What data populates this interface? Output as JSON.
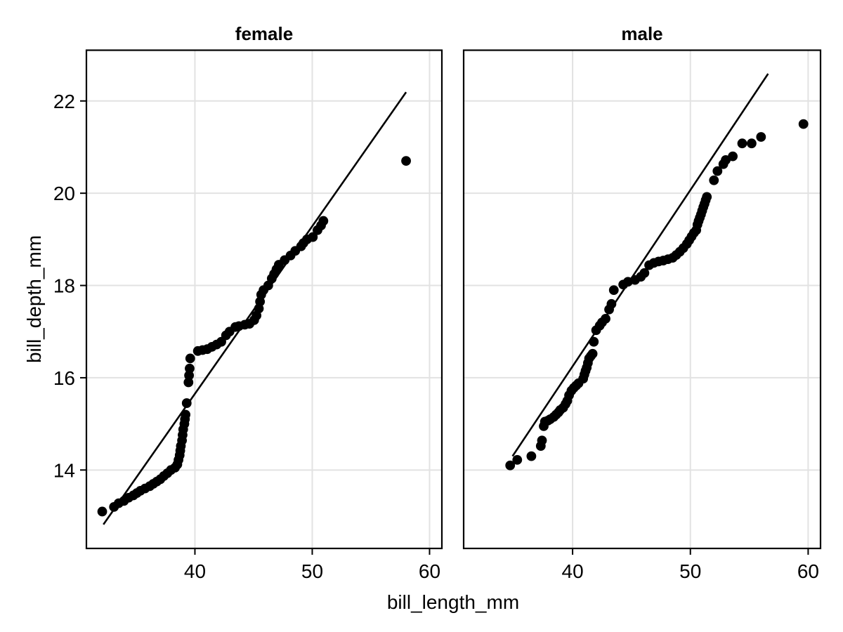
{
  "figure": {
    "background": "#ffffff",
    "foreground": "#000000",
    "grid_color": "#e2e2e2",
    "panel_border_color": "#000000",
    "point_color": "#000000",
    "line_color": "#000000"
  },
  "chart_data": {
    "type": "scatter",
    "faceted": true,
    "title": "",
    "xlabel": "bill_length_mm",
    "ylabel": "bill_depth_mm",
    "x_ticks": [
      40,
      50,
      60
    ],
    "y_ticks": [
      14,
      16,
      18,
      20,
      22
    ],
    "xlim": [
      30.75,
      61.05
    ],
    "ylim": [
      12.3,
      23.1
    ],
    "grid": true,
    "legend": "none",
    "panels": [
      {
        "title": "female",
        "line": {
          "x1": 32.2,
          "y1": 12.82,
          "x2": 58.0,
          "y2": 22.19
        },
        "points": [
          [
            32.1,
            13.1
          ],
          [
            33.1,
            13.2
          ],
          [
            33.5,
            13.28
          ],
          [
            33.95,
            13.33
          ],
          [
            34.35,
            13.4
          ],
          [
            34.75,
            13.45
          ],
          [
            35.05,
            13.5
          ],
          [
            35.35,
            13.55
          ],
          [
            35.75,
            13.6
          ],
          [
            36.15,
            13.65
          ],
          [
            36.45,
            13.7
          ],
          [
            36.75,
            13.75
          ],
          [
            37.05,
            13.8
          ],
          [
            37.35,
            13.87
          ],
          [
            37.65,
            13.93
          ],
          [
            37.95,
            14.0
          ],
          [
            38.3,
            14.05
          ],
          [
            38.5,
            14.12
          ],
          [
            38.6,
            14.22
          ],
          [
            38.7,
            14.32
          ],
          [
            38.75,
            14.42
          ],
          [
            38.8,
            14.52
          ],
          [
            38.9,
            14.64
          ],
          [
            38.95,
            14.76
          ],
          [
            39.0,
            14.88
          ],
          [
            39.1,
            15.0
          ],
          [
            39.15,
            15.1
          ],
          [
            39.2,
            15.2
          ],
          [
            39.3,
            15.45
          ],
          [
            39.45,
            15.9
          ],
          [
            39.5,
            16.05
          ],
          [
            39.55,
            16.2
          ],
          [
            39.6,
            16.42
          ],
          [
            40.25,
            16.58
          ],
          [
            40.65,
            16.6
          ],
          [
            41.05,
            16.62
          ],
          [
            41.45,
            16.67
          ],
          [
            41.85,
            16.72
          ],
          [
            42.25,
            16.78
          ],
          [
            42.65,
            16.92
          ],
          [
            42.95,
            17.0
          ],
          [
            43.45,
            17.1
          ],
          [
            43.75,
            17.12
          ],
          [
            44.25,
            17.15
          ],
          [
            44.65,
            17.17
          ],
          [
            45.05,
            17.25
          ],
          [
            45.25,
            17.35
          ],
          [
            45.45,
            17.5
          ],
          [
            45.55,
            17.65
          ],
          [
            45.65,
            17.8
          ],
          [
            45.85,
            17.9
          ],
          [
            46.25,
            18.0
          ],
          [
            46.55,
            18.15
          ],
          [
            46.75,
            18.25
          ],
          [
            46.95,
            18.35
          ],
          [
            47.15,
            18.45
          ],
          [
            47.65,
            18.55
          ],
          [
            48.15,
            18.65
          ],
          [
            48.55,
            18.75
          ],
          [
            49.05,
            18.85
          ],
          [
            49.25,
            18.92
          ],
          [
            49.55,
            19.0
          ],
          [
            50.05,
            19.05
          ],
          [
            50.45,
            19.2
          ],
          [
            50.75,
            19.3
          ],
          [
            50.95,
            19.4
          ],
          [
            58.0,
            20.7
          ]
        ]
      },
      {
        "title": "male",
        "line": {
          "x1": 34.9,
          "y1": 14.3,
          "x2": 56.6,
          "y2": 22.59
        },
        "points": [
          [
            34.7,
            14.1
          ],
          [
            35.3,
            14.22
          ],
          [
            36.5,
            14.3
          ],
          [
            37.3,
            14.52
          ],
          [
            37.4,
            14.64
          ],
          [
            37.55,
            14.95
          ],
          [
            37.65,
            15.05
          ],
          [
            37.9,
            15.07
          ],
          [
            38.1,
            15.1
          ],
          [
            38.4,
            15.15
          ],
          [
            38.6,
            15.2
          ],
          [
            38.8,
            15.25
          ],
          [
            38.95,
            15.3
          ],
          [
            39.2,
            15.35
          ],
          [
            39.4,
            15.43
          ],
          [
            39.55,
            15.5
          ],
          [
            39.7,
            15.62
          ],
          [
            39.9,
            15.72
          ],
          [
            40.1,
            15.78
          ],
          [
            40.3,
            15.83
          ],
          [
            40.5,
            15.88
          ],
          [
            40.9,
            15.98
          ],
          [
            41.0,
            16.07
          ],
          [
            41.1,
            16.15
          ],
          [
            41.2,
            16.22
          ],
          [
            41.3,
            16.32
          ],
          [
            41.4,
            16.42
          ],
          [
            41.55,
            16.47
          ],
          [
            41.7,
            16.52
          ],
          [
            41.8,
            16.78
          ],
          [
            42.0,
            17.03
          ],
          [
            42.3,
            17.13
          ],
          [
            42.5,
            17.2
          ],
          [
            42.8,
            17.28
          ],
          [
            43.1,
            17.48
          ],
          [
            43.3,
            17.6
          ],
          [
            43.5,
            17.9
          ],
          [
            44.3,
            18.02
          ],
          [
            44.7,
            18.08
          ],
          [
            45.3,
            18.12
          ],
          [
            45.8,
            18.19
          ],
          [
            46.1,
            18.27
          ],
          [
            46.5,
            18.44
          ],
          [
            46.9,
            18.49
          ],
          [
            47.3,
            18.52
          ],
          [
            47.7,
            18.54
          ],
          [
            48.1,
            18.57
          ],
          [
            48.5,
            18.6
          ],
          [
            48.8,
            18.66
          ],
          [
            49.1,
            18.73
          ],
          [
            49.4,
            18.81
          ],
          [
            49.7,
            18.9
          ],
          [
            49.9,
            18.98
          ],
          [
            50.1,
            19.06
          ],
          [
            50.3,
            19.14
          ],
          [
            50.5,
            19.2
          ],
          [
            50.6,
            19.32
          ],
          [
            50.7,
            19.4
          ],
          [
            50.8,
            19.47
          ],
          [
            50.9,
            19.54
          ],
          [
            51.0,
            19.62
          ],
          [
            51.1,
            19.7
          ],
          [
            51.2,
            19.77
          ],
          [
            51.3,
            19.85
          ],
          [
            51.4,
            19.92
          ],
          [
            52.0,
            20.28
          ],
          [
            52.3,
            20.48
          ],
          [
            52.8,
            20.63
          ],
          [
            53.0,
            20.72
          ],
          [
            53.6,
            20.8
          ],
          [
            54.4,
            21.08
          ],
          [
            55.2,
            21.08
          ],
          [
            56.0,
            21.22
          ],
          [
            59.6,
            21.5
          ]
        ]
      }
    ]
  }
}
